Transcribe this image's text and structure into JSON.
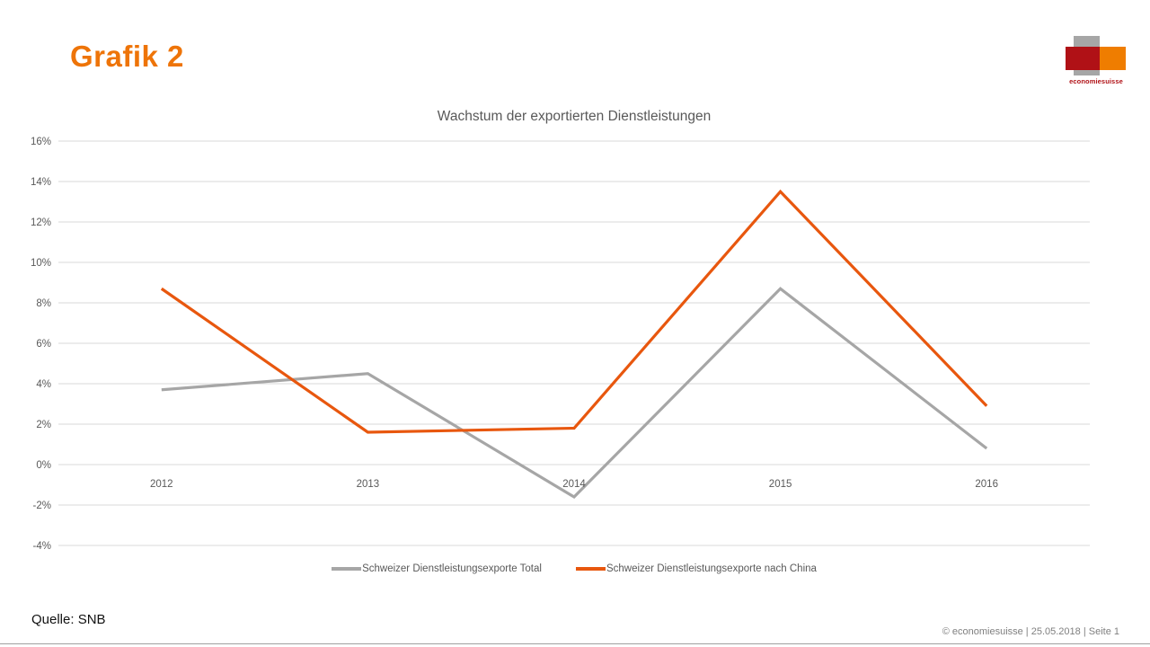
{
  "slide": {
    "title": "Grafik 2",
    "title_color": "#ee7408",
    "source": "Quelle: SNB",
    "footer": "© economiesuisse | 25.05.2018 | Seite 1"
  },
  "logo": {
    "wordmark": "economiesuisse",
    "gray": "#a6a6a6",
    "red": "#b01116",
    "orange": "#ef7d00"
  },
  "chart_data": {
    "type": "line",
    "title": "Wachstum der exportierten Dienstleistungen",
    "categories": [
      "2012",
      "2013",
      "2014",
      "2015",
      "2016"
    ],
    "series": [
      {
        "name": "Schweizer Dienstleistungsexporte Total",
        "color": "#a6a6a6",
        "values": [
          3.7,
          4.5,
          -1.6,
          8.7,
          0.8
        ]
      },
      {
        "name": "Schweizer Dienstleistungsexporte nach China",
        "color": "#e8570e",
        "values": [
          8.7,
          1.6,
          1.8,
          13.5,
          2.9
        ]
      }
    ],
    "ylim": [
      -4,
      16
    ],
    "ytick_step": 2,
    "ytick_suffix": "%",
    "grid": true,
    "grid_color": "#d9d9d9",
    "axis_text_color": "#595959",
    "legend_position": "bottom"
  }
}
